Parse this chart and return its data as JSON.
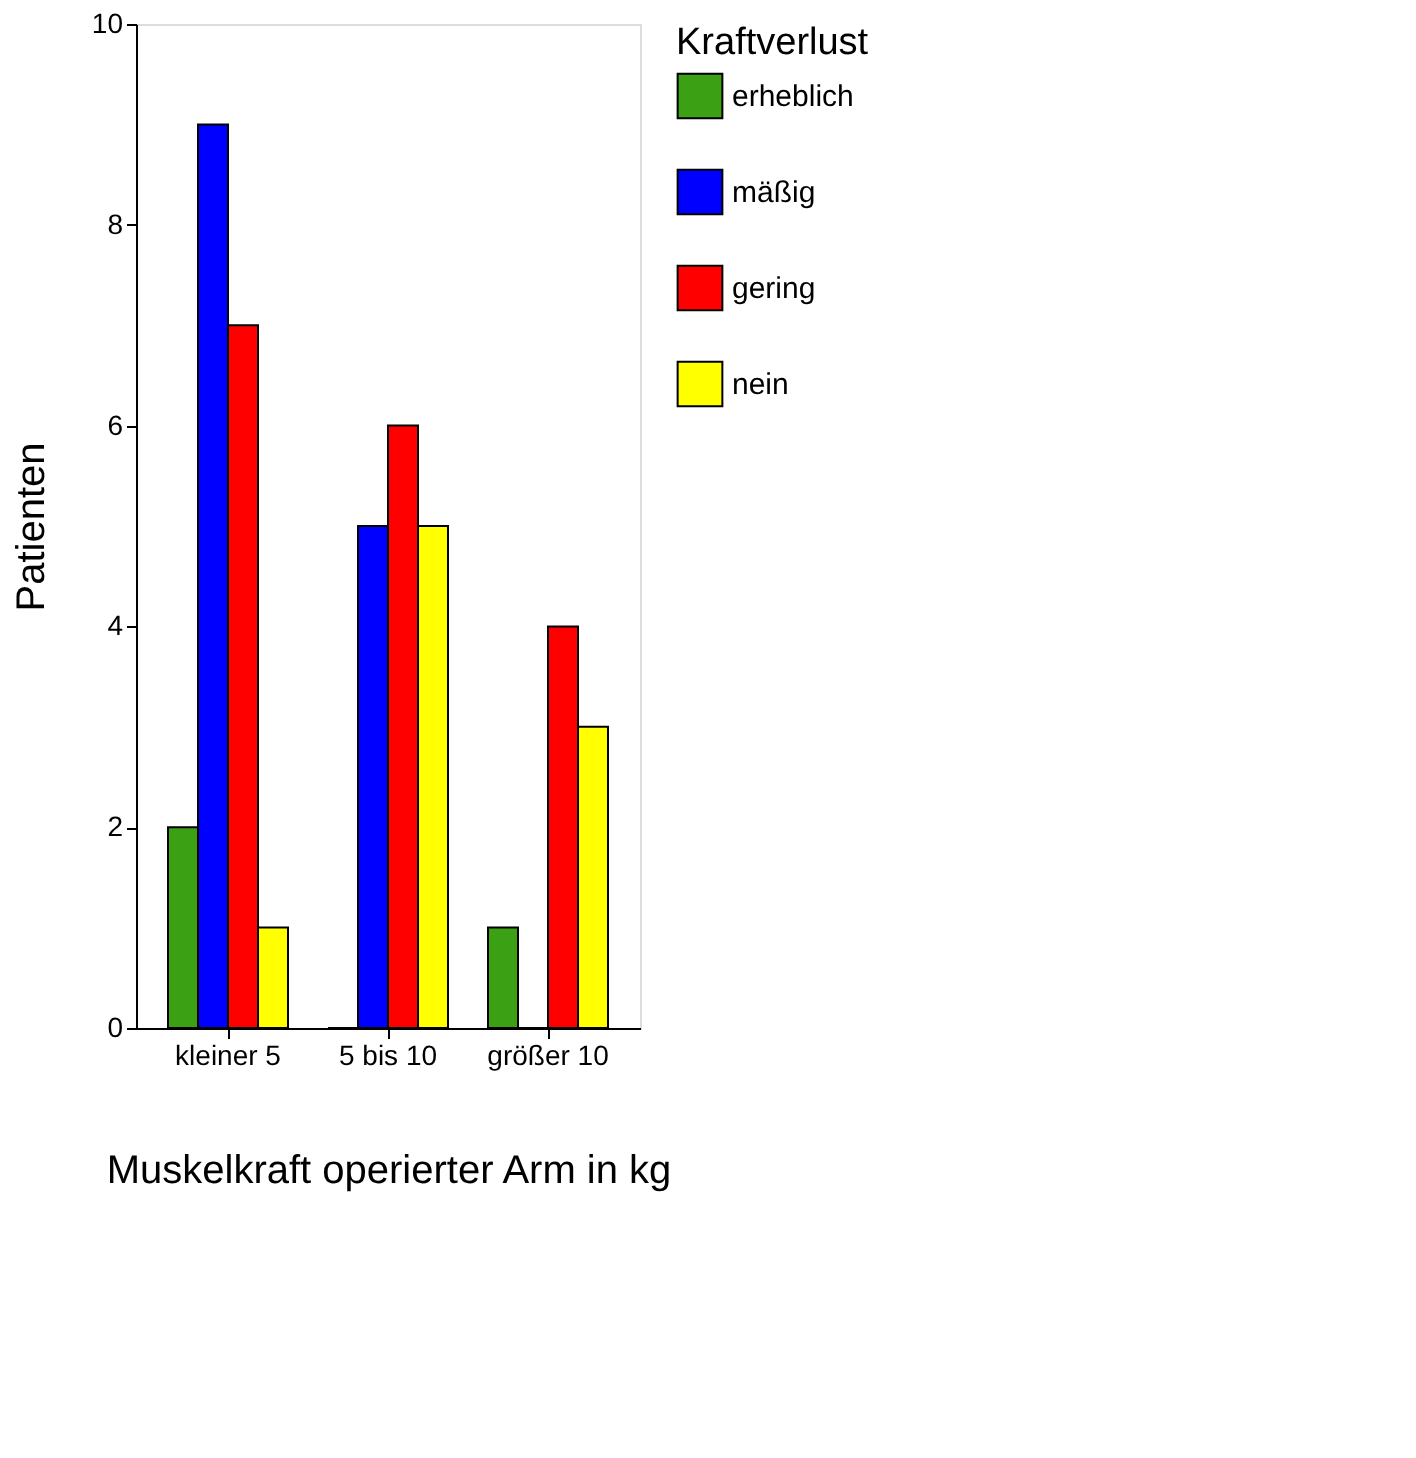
{
  "chart_data": {
    "type": "bar",
    "xlabel": "Muskelkraft operierter Arm in kg",
    "ylabel": "Patienten",
    "legend_title": "Kraftverlust",
    "categories": [
      "kleiner 5",
      "5 bis 10",
      "größer 10"
    ],
    "series": [
      {
        "name": "erheblich",
        "color": "#3ca014",
        "values": [
          2,
          0,
          1
        ]
      },
      {
        "name": "mäßig",
        "color": "#0000ff",
        "values": [
          9,
          5,
          0
        ]
      },
      {
        "name": "gering",
        "color": "#ff0000",
        "values": [
          7,
          6,
          4
        ]
      },
      {
        "name": "nein",
        "color": "#ffff00",
        "values": [
          1,
          5,
          3
        ]
      }
    ],
    "ylim": [
      0,
      10
    ],
    "yticks": [
      0,
      2,
      4,
      6,
      8,
      10
    ],
    "grid": false,
    "legend": "right"
  }
}
